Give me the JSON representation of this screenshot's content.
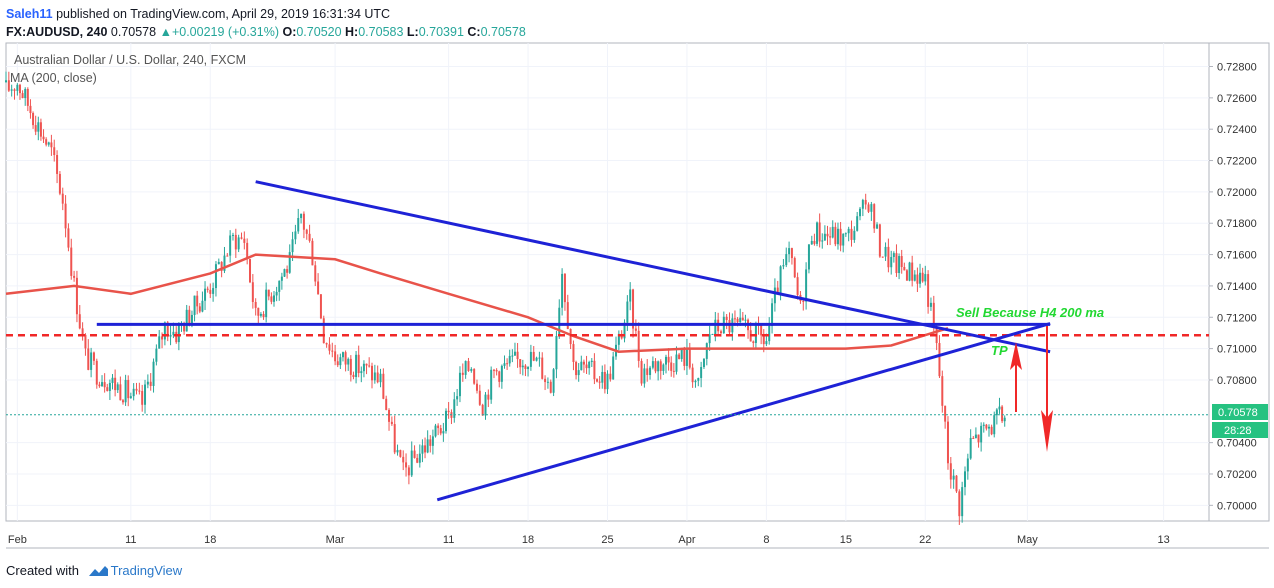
{
  "header": {
    "author": "Saleh11",
    "published_text": "published on TradingView.com, April 29, 2019 16:31:34 UTC",
    "symbol_line_prefix": "FX:AUDUSD, 240",
    "last": "0.70578",
    "change": "+0.00219 (+0.31%)",
    "o_label": "O:",
    "o": "0.70520",
    "h_label": "H:",
    "h": "0.70583",
    "l_label": "L:",
    "l": "0.70391",
    "c_label": "C:",
    "c": "0.70578"
  },
  "legend": {
    "instrument": "Australian Dollar / U.S. Dollar, 240, FXCM",
    "indicator": "MA (200, close)"
  },
  "annotations": {
    "sell_text": "Sell Because H4 200 ma",
    "tp_text": "TP"
  },
  "price_badge": {
    "price": "0.70578",
    "countdown": "28:28"
  },
  "footer": {
    "created_with": "Created with",
    "brand": "TradingView"
  },
  "colors": {
    "up": "#26a69a",
    "down": "#ef5350",
    "ma": "#e8534a",
    "trendline": "#1e22d6",
    "annotation_green": "#22d832",
    "arrow_red": "#f02828",
    "badge_green": "#26c281"
  },
  "chart_data": {
    "type": "candlestick",
    "symbol": "FX:AUDUSD",
    "timeframe": "240",
    "ylim": [
      0.699,
      0.7295
    ],
    "y_ticks": [
      0.7,
      0.702,
      0.704,
      0.708,
      0.71,
      0.712,
      0.714,
      0.716,
      0.718,
      0.72,
      0.722,
      0.724,
      0.726,
      0.728
    ],
    "y_tick_labels": [
      "0.70000",
      "0.70200",
      "0.70400",
      "0.70800",
      "0.71000",
      "0.71200",
      "0.71400",
      "0.71600",
      "0.71800",
      "0.72000",
      "0.72200",
      "0.72400",
      "0.72600",
      "0.72800"
    ],
    "x_ticks": [
      {
        "label": "Feb",
        "date": "2019-02-01"
      },
      {
        "label": "11",
        "date": "2019-02-11"
      },
      {
        "label": "18",
        "date": "2019-02-18"
      },
      {
        "label": "Mar",
        "date": "2019-03-01"
      },
      {
        "label": "11",
        "date": "2019-03-11"
      },
      {
        "label": "18",
        "date": "2019-03-18"
      },
      {
        "label": "25",
        "date": "2019-03-25"
      },
      {
        "label": "Apr",
        "date": "2019-04-01"
      },
      {
        "label": "8",
        "date": "2019-04-08"
      },
      {
        "label": "15",
        "date": "2019-04-15"
      },
      {
        "label": "22",
        "date": "2019-04-22"
      },
      {
        "label": "May",
        "date": "2019-05-01"
      },
      {
        "label": "13",
        "date": "2019-05-13"
      }
    ],
    "close_path": [
      [
        "2019-01-31",
        0.7265
      ],
      [
        "2019-02-01",
        0.727
      ],
      [
        "2019-02-04",
        0.7225
      ],
      [
        "2019-02-05",
        0.7195
      ],
      [
        "2019-02-06",
        0.714
      ],
      [
        "2019-02-07",
        0.7095
      ],
      [
        "2019-02-08",
        0.7085
      ],
      [
        "2019-02-11",
        0.707
      ],
      [
        "2019-02-12",
        0.7065
      ],
      [
        "2019-02-13",
        0.709
      ],
      [
        "2019-02-14",
        0.7115
      ],
      [
        "2019-02-15",
        0.711
      ],
      [
        "2019-02-18",
        0.714
      ],
      [
        "2019-02-19",
        0.7155
      ],
      [
        "2019-02-20",
        0.717
      ],
      [
        "2019-02-21",
        0.717
      ],
      [
        "2019-02-22",
        0.712
      ],
      [
        "2019-02-25",
        0.7155
      ],
      [
        "2019-02-26",
        0.7185
      ],
      [
        "2019-02-27",
        0.716
      ],
      [
        "2019-02-28",
        0.711
      ],
      [
        "2019-03-01",
        0.7095
      ],
      [
        "2019-03-04",
        0.7085
      ],
      [
        "2019-03-05",
        0.708
      ],
      [
        "2019-03-06",
        0.7045
      ],
      [
        "2019-03-07",
        0.702
      ],
      [
        "2019-03-08",
        0.703
      ],
      [
        "2019-03-11",
        0.7055
      ],
      [
        "2019-03-12",
        0.708
      ],
      [
        "2019-03-13",
        0.709
      ],
      [
        "2019-03-14",
        0.7065
      ],
      [
        "2019-03-15",
        0.7085
      ],
      [
        "2019-03-18",
        0.7095
      ],
      [
        "2019-03-19",
        0.709
      ],
      [
        "2019-03-20",
        0.7075
      ],
      [
        "2019-03-21",
        0.715
      ],
      [
        "2019-03-22",
        0.709
      ],
      [
        "2019-03-25",
        0.708
      ],
      [
        "2019-03-26",
        0.7105
      ],
      [
        "2019-03-27",
        0.713
      ],
      [
        "2019-03-28",
        0.7085
      ],
      [
        "2019-03-29",
        0.709
      ],
      [
        "2019-04-01",
        0.7095
      ],
      [
        "2019-04-02",
        0.7075
      ],
      [
        "2019-04-03",
        0.711
      ],
      [
        "2019-04-04",
        0.7115
      ],
      [
        "2019-04-05",
        0.7115
      ],
      [
        "2019-04-08",
        0.7105
      ],
      [
        "2019-04-09",
        0.714
      ],
      [
        "2019-04-10",
        0.716
      ],
      [
        "2019-04-11",
        0.7125
      ],
      [
        "2019-04-12",
        0.7175
      ],
      [
        "2019-04-15",
        0.717
      ],
      [
        "2019-04-16",
        0.718
      ],
      [
        "2019-04-17",
        0.7195
      ],
      [
        "2019-04-18",
        0.7165
      ],
      [
        "2019-04-19",
        0.7155
      ],
      [
        "2019-04-22",
        0.7145
      ],
      [
        "2019-04-23",
        0.71
      ],
      [
        "2019-04-24",
        0.703
      ],
      [
        "2019-04-25",
        0.7
      ],
      [
        "2019-04-26",
        0.704
      ],
      [
        "2019-04-29",
        0.7058
      ]
    ],
    "ma_200": [
      [
        "2019-01-31",
        0.7135
      ],
      [
        "2019-02-06",
        0.714
      ],
      [
        "2019-02-11",
        0.7135
      ],
      [
        "2019-02-18",
        0.7148
      ],
      [
        "2019-02-22",
        0.716
      ],
      [
        "2019-03-01",
        0.7157
      ],
      [
        "2019-03-05",
        0.7148
      ],
      [
        "2019-03-11",
        0.7135
      ],
      [
        "2019-03-18",
        0.712
      ],
      [
        "2019-03-22",
        0.7108
      ],
      [
        "2019-03-26",
        0.7098
      ],
      [
        "2019-04-01",
        0.71
      ],
      [
        "2019-04-08",
        0.71
      ],
      [
        "2019-04-15",
        0.71
      ],
      [
        "2019-04-19",
        0.7102
      ],
      [
        "2019-04-24",
        0.7113
      ]
    ],
    "last_price": 0.70578,
    "drawings": {
      "upper_trendline": [
        [
          "2019-02-22",
          0.72065
        ],
        [
          "2019-05-03",
          0.7098
        ]
      ],
      "lower_trendline": [
        [
          "2019-03-10",
          0.70035
        ],
        [
          "2019-05-03",
          0.7116
        ]
      ],
      "horizontal_resistance": {
        "from": "2019-02-08",
        "to": "2019-05-03",
        "price": 0.71155
      },
      "dashed_level": 0.71085
    }
  }
}
